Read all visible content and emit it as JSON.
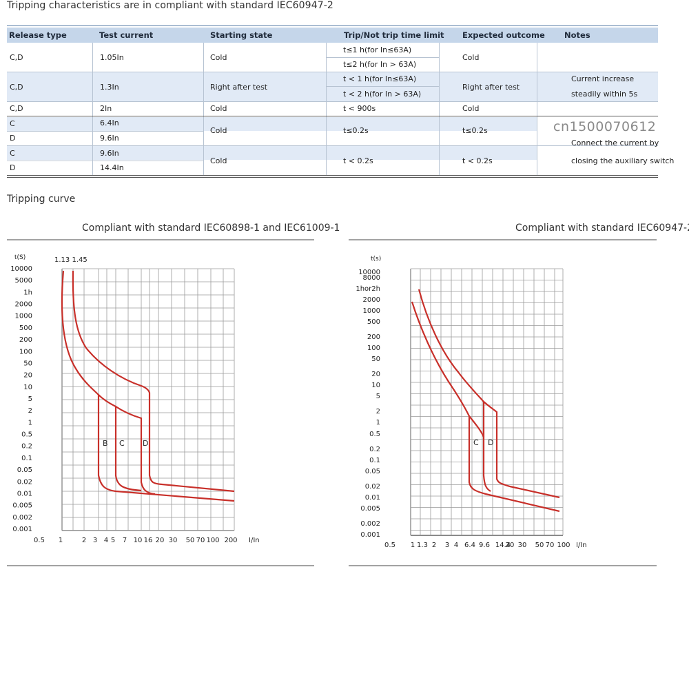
{
  "page_title": "Tripping characteristics are in compliant with standard IEC60947-2",
  "table": {
    "headers": [
      "Release type",
      "Test current",
      "Starting state",
      "Trip/Not trip time limit",
      "Expected outcome",
      "Notes"
    ],
    "rows": [
      {
        "release": "C,D",
        "current": "1.05In",
        "state": "Cold",
        "limits": [
          "t≤1 h(for In≤63A)",
          "t≤2 h(for In > 63A)"
        ],
        "outcome": "Cold",
        "notes": []
      },
      {
        "release": "C,D",
        "current": "1.3In",
        "state": "Right after test",
        "limits": [
          "t < 1 h(for In≤63A)",
          "t < 2 h(for In > 63A)"
        ],
        "outcome": "Right after test",
        "notes": [
          "Current increase",
          "steadily within 5s"
        ]
      },
      {
        "release": "C,D",
        "current": "2In",
        "state": "Cold",
        "limits": [
          "t < 900s"
        ],
        "outcome": "Cold",
        "notes": []
      },
      {
        "release": [
          "C",
          "D"
        ],
        "current": [
          "6.4In",
          "9.6In"
        ],
        "state": "Cold",
        "limits": [
          "t≤0.2s"
        ],
        "outcome": "t≤0.2s",
        "notes": []
      },
      {
        "release": [
          "C",
          "D"
        ],
        "current": [
          "9.6In",
          "14.4In"
        ],
        "state": "Cold",
        "limits": [
          "t < 0.2s"
        ],
        "outcome": "t < 0.2s",
        "notes": [
          "Connect the current by",
          "closing the auxiliary switch"
        ]
      }
    ],
    "watermark": "cn1500070612"
  },
  "section_title": "Tripping curve",
  "chart_data": [
    {
      "type": "line",
      "title": "Compliant with standard IEC60898-1 and IEC61009-1",
      "ylabel": "t(S)",
      "xlabel": "I/In",
      "y_scale": "log",
      "x_scale": "log",
      "y_ticks": [
        "10000",
        "5000",
        "1h",
        "2000",
        "1000",
        "500",
        "200",
        "100",
        "50",
        "20",
        "10",
        "5",
        "2",
        "1",
        "0.5",
        "0.2",
        "0.1",
        "0.05",
        "0.02",
        "0.01",
        "0.005",
        "0.002",
        "0.001"
      ],
      "x_ticks": [
        "0.5",
        "1",
        "2",
        "3",
        "4",
        "5",
        "7",
        "10",
        "16",
        "20",
        "30",
        "50",
        "70",
        "100",
        "200"
      ],
      "top_annotation": "1.13 1.45",
      "curve_labels": [
        "B",
        "C",
        "D"
      ],
      "series": [
        {
          "label": "B",
          "instant_trip_multiple": [
            3,
            5
          ]
        },
        {
          "label": "C",
          "instant_trip_multiple": [
            5,
            10
          ]
        },
        {
          "label": "D",
          "instant_trip_multiple": [
            10,
            20
          ]
        }
      ],
      "color": "#c8302a"
    },
    {
      "type": "line",
      "title": "Compliant with standard IEC60947-2",
      "ylabel": "t(s)",
      "xlabel": "I/In",
      "y_scale": "log",
      "x_scale": "log",
      "y_ticks": [
        "10000",
        "8000",
        "1hor2h",
        "2000",
        "1000",
        "500",
        "200",
        "100",
        "50",
        "20",
        "10",
        "5",
        "2",
        "1",
        "0.5",
        "0.2",
        "0.1",
        "0.05",
        "0.02",
        "0.01",
        "0.005",
        "0.002",
        "0.001"
      ],
      "x_ticks": [
        "0.5",
        "1",
        "1.3",
        "2",
        "3",
        "4",
        "6.4",
        "9.6",
        "14.4",
        "20",
        "30",
        "50",
        "70",
        "100"
      ],
      "curve_labels": [
        "C",
        "D"
      ],
      "series": [
        {
          "label": "C",
          "instant_trip_multiple": [
            6.4,
            9.6
          ]
        },
        {
          "label": "D",
          "instant_trip_multiple": [
            9.6,
            14.4
          ]
        }
      ],
      "color": "#c8302a"
    }
  ]
}
